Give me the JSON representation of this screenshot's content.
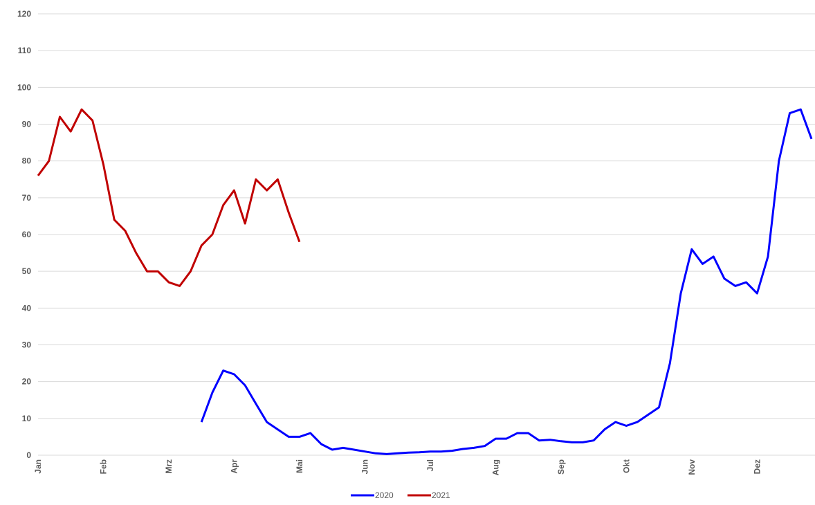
{
  "chart_data": {
    "type": "line",
    "categories": [
      "Jan",
      null,
      null,
      null,
      null,
      null,
      "Feb",
      null,
      null,
      null,
      null,
      null,
      "Mrz",
      null,
      null,
      null,
      null,
      null,
      "Apr",
      null,
      null,
      null,
      null,
      null,
      "Mai",
      null,
      null,
      null,
      null,
      null,
      "Jun",
      null,
      null,
      null,
      null,
      null,
      "Jul",
      null,
      null,
      null,
      null,
      null,
      "Aug",
      null,
      null,
      null,
      null,
      null,
      "Sep",
      null,
      null,
      null,
      null,
      null,
      "Okt",
      null,
      null,
      null,
      null,
      null,
      "Nov",
      null,
      null,
      null,
      null,
      null,
      "Dez",
      null,
      null,
      null,
      null,
      null
    ],
    "series": [
      {
        "name": "2020",
        "color": "#0000ff",
        "values": [
          null,
          null,
          null,
          null,
          null,
          null,
          null,
          null,
          null,
          null,
          null,
          null,
          null,
          null,
          null,
          9,
          17,
          23,
          22,
          19,
          14,
          9,
          7,
          5,
          5,
          6,
          3,
          1.5,
          2,
          1.5,
          1,
          0.5,
          0.3,
          0.5,
          0.7,
          0.8,
          1,
          1,
          1.2,
          1.7,
          2,
          2.5,
          4.5,
          4.5,
          6,
          6,
          4,
          4.2,
          3.8,
          3.5,
          3.5,
          4,
          7,
          9,
          8,
          9,
          11,
          13,
          25,
          44,
          56,
          52,
          54,
          48,
          46,
          47,
          44,
          54,
          80,
          93,
          94,
          86
        ]
      },
      {
        "name": "2021",
        "color": "#c00000",
        "values": [
          76,
          80,
          92,
          88,
          94,
          91,
          79,
          64,
          61,
          55,
          50,
          50,
          47,
          46,
          50,
          57,
          60,
          68,
          72,
          63,
          75,
          72,
          75,
          66,
          58,
          null,
          null,
          null,
          null,
          null,
          null,
          null,
          null,
          null,
          null,
          null,
          null,
          null,
          null,
          null,
          null,
          null,
          null,
          null,
          null,
          null,
          null,
          null,
          null,
          null,
          null,
          null,
          null,
          null,
          null,
          null,
          null,
          null,
          null,
          null,
          null,
          null,
          null,
          null,
          null,
          null,
          null,
          null,
          null,
          null,
          null,
          null
        ]
      }
    ],
    "ylim": [
      0,
      120
    ],
    "yticks": [
      0,
      10,
      20,
      30,
      40,
      50,
      60,
      70,
      80,
      90,
      100,
      110,
      120
    ],
    "grid": true,
    "legend": "bottom"
  }
}
